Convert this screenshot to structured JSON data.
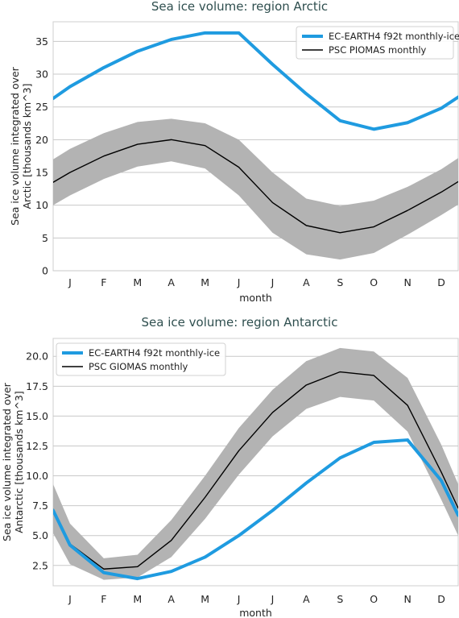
{
  "chart_data": [
    {
      "type": "line",
      "title": "Sea ice volume: region Arctic",
      "xlabel": "month",
      "ylabel_lines": [
        "Sea ice volume integrated over",
        "Arctic [thousands km^3]"
      ],
      "categories": [
        "J",
        "F",
        "M",
        "A",
        "M",
        "J",
        "J",
        "A",
        "S",
        "O",
        "N",
        "D"
      ],
      "x": [
        0.5,
        1,
        2,
        3,
        4,
        5,
        6,
        7,
        8,
        9,
        10,
        11,
        12,
        12.5
      ],
      "xlim": [
        0.5,
        12.5
      ],
      "ylim": [
        0,
        38
      ],
      "yticks": [
        0,
        5,
        10,
        15,
        20,
        25,
        30,
        35
      ],
      "ytick_labels": [
        "0",
        "5",
        "10",
        "15",
        "20",
        "25",
        "30",
        "35"
      ],
      "legend_position": "top-right",
      "series": [
        {
          "name": "EC-EARTH4 f92t monthly-ice",
          "color": "#1f9be0",
          "values": [
            26.3,
            28.1,
            31.0,
            33.5,
            35.3,
            36.3,
            36.3,
            31.5,
            27.0,
            22.9,
            21.6,
            22.6,
            24.8,
            26.5
          ]
        },
        {
          "name": "PSC PIOMAS monthly",
          "color": "#000000",
          "values": [
            13.5,
            15.0,
            17.5,
            19.3,
            20.0,
            19.1,
            15.8,
            10.4,
            6.9,
            5.8,
            6.7,
            9.2,
            12.0,
            13.6
          ],
          "band_upper": [
            17.0,
            18.6,
            21.0,
            22.7,
            23.2,
            22.5,
            20.0,
            15.0,
            11.0,
            9.9,
            10.7,
            12.8,
            15.5,
            17.2
          ],
          "band_lower": [
            10.0,
            11.5,
            14.0,
            15.9,
            16.7,
            15.6,
            11.5,
            5.8,
            2.5,
            1.7,
            2.7,
            5.5,
            8.5,
            10.1
          ],
          "band_color": "#b3b3b3"
        }
      ]
    },
    {
      "type": "line",
      "title": "Sea ice volume: region Antarctic",
      "xlabel": "month",
      "ylabel_lines": [
        "Sea ice volume integrated over",
        "Antarctic [thousands km^3]"
      ],
      "categories": [
        "J",
        "F",
        "M",
        "A",
        "M",
        "J",
        "J",
        "A",
        "S",
        "O",
        "N",
        "D"
      ],
      "x": [
        0.5,
        1,
        2,
        3,
        4,
        5,
        6,
        7,
        8,
        9,
        10,
        11,
        12,
        12.5
      ],
      "xlim": [
        0.5,
        12.5
      ],
      "ylim": [
        0.8,
        21.5
      ],
      "yticks": [
        2.5,
        5,
        7.5,
        10,
        12.5,
        15,
        17.5,
        20
      ],
      "ytick_labels": [
        "2.5",
        "5.0",
        "7.5",
        "10.0",
        "12.5",
        "15.0",
        "17.5",
        "20.0"
      ],
      "legend_position": "top-left",
      "series": [
        {
          "name": "EC-EARTH4 f92t monthly-ice",
          "color": "#1f9be0",
          "values": [
            7.1,
            4.2,
            1.9,
            1.4,
            2.0,
            3.2,
            5.0,
            7.1,
            9.4,
            11.5,
            12.8,
            13.0,
            9.6,
            6.7
          ]
        },
        {
          "name": "PSC GIOMAS monthly",
          "color": "#000000",
          "values": [
            7.2,
            4.3,
            2.2,
            2.4,
            4.6,
            8.2,
            12.1,
            15.3,
            17.6,
            18.7,
            18.4,
            15.9,
            10.3,
            7.3
          ],
          "band_upper": [
            9.3,
            6.0,
            3.1,
            3.4,
            6.3,
            10.0,
            14.0,
            17.2,
            19.6,
            20.7,
            20.4,
            18.2,
            12.6,
            9.3
          ],
          "band_lower": [
            5.2,
            2.6,
            1.3,
            1.5,
            3.2,
            6.4,
            10.1,
            13.3,
            15.6,
            16.6,
            16.3,
            13.7,
            8.0,
            5.0
          ],
          "band_color": "#b3b3b3"
        }
      ]
    }
  ]
}
